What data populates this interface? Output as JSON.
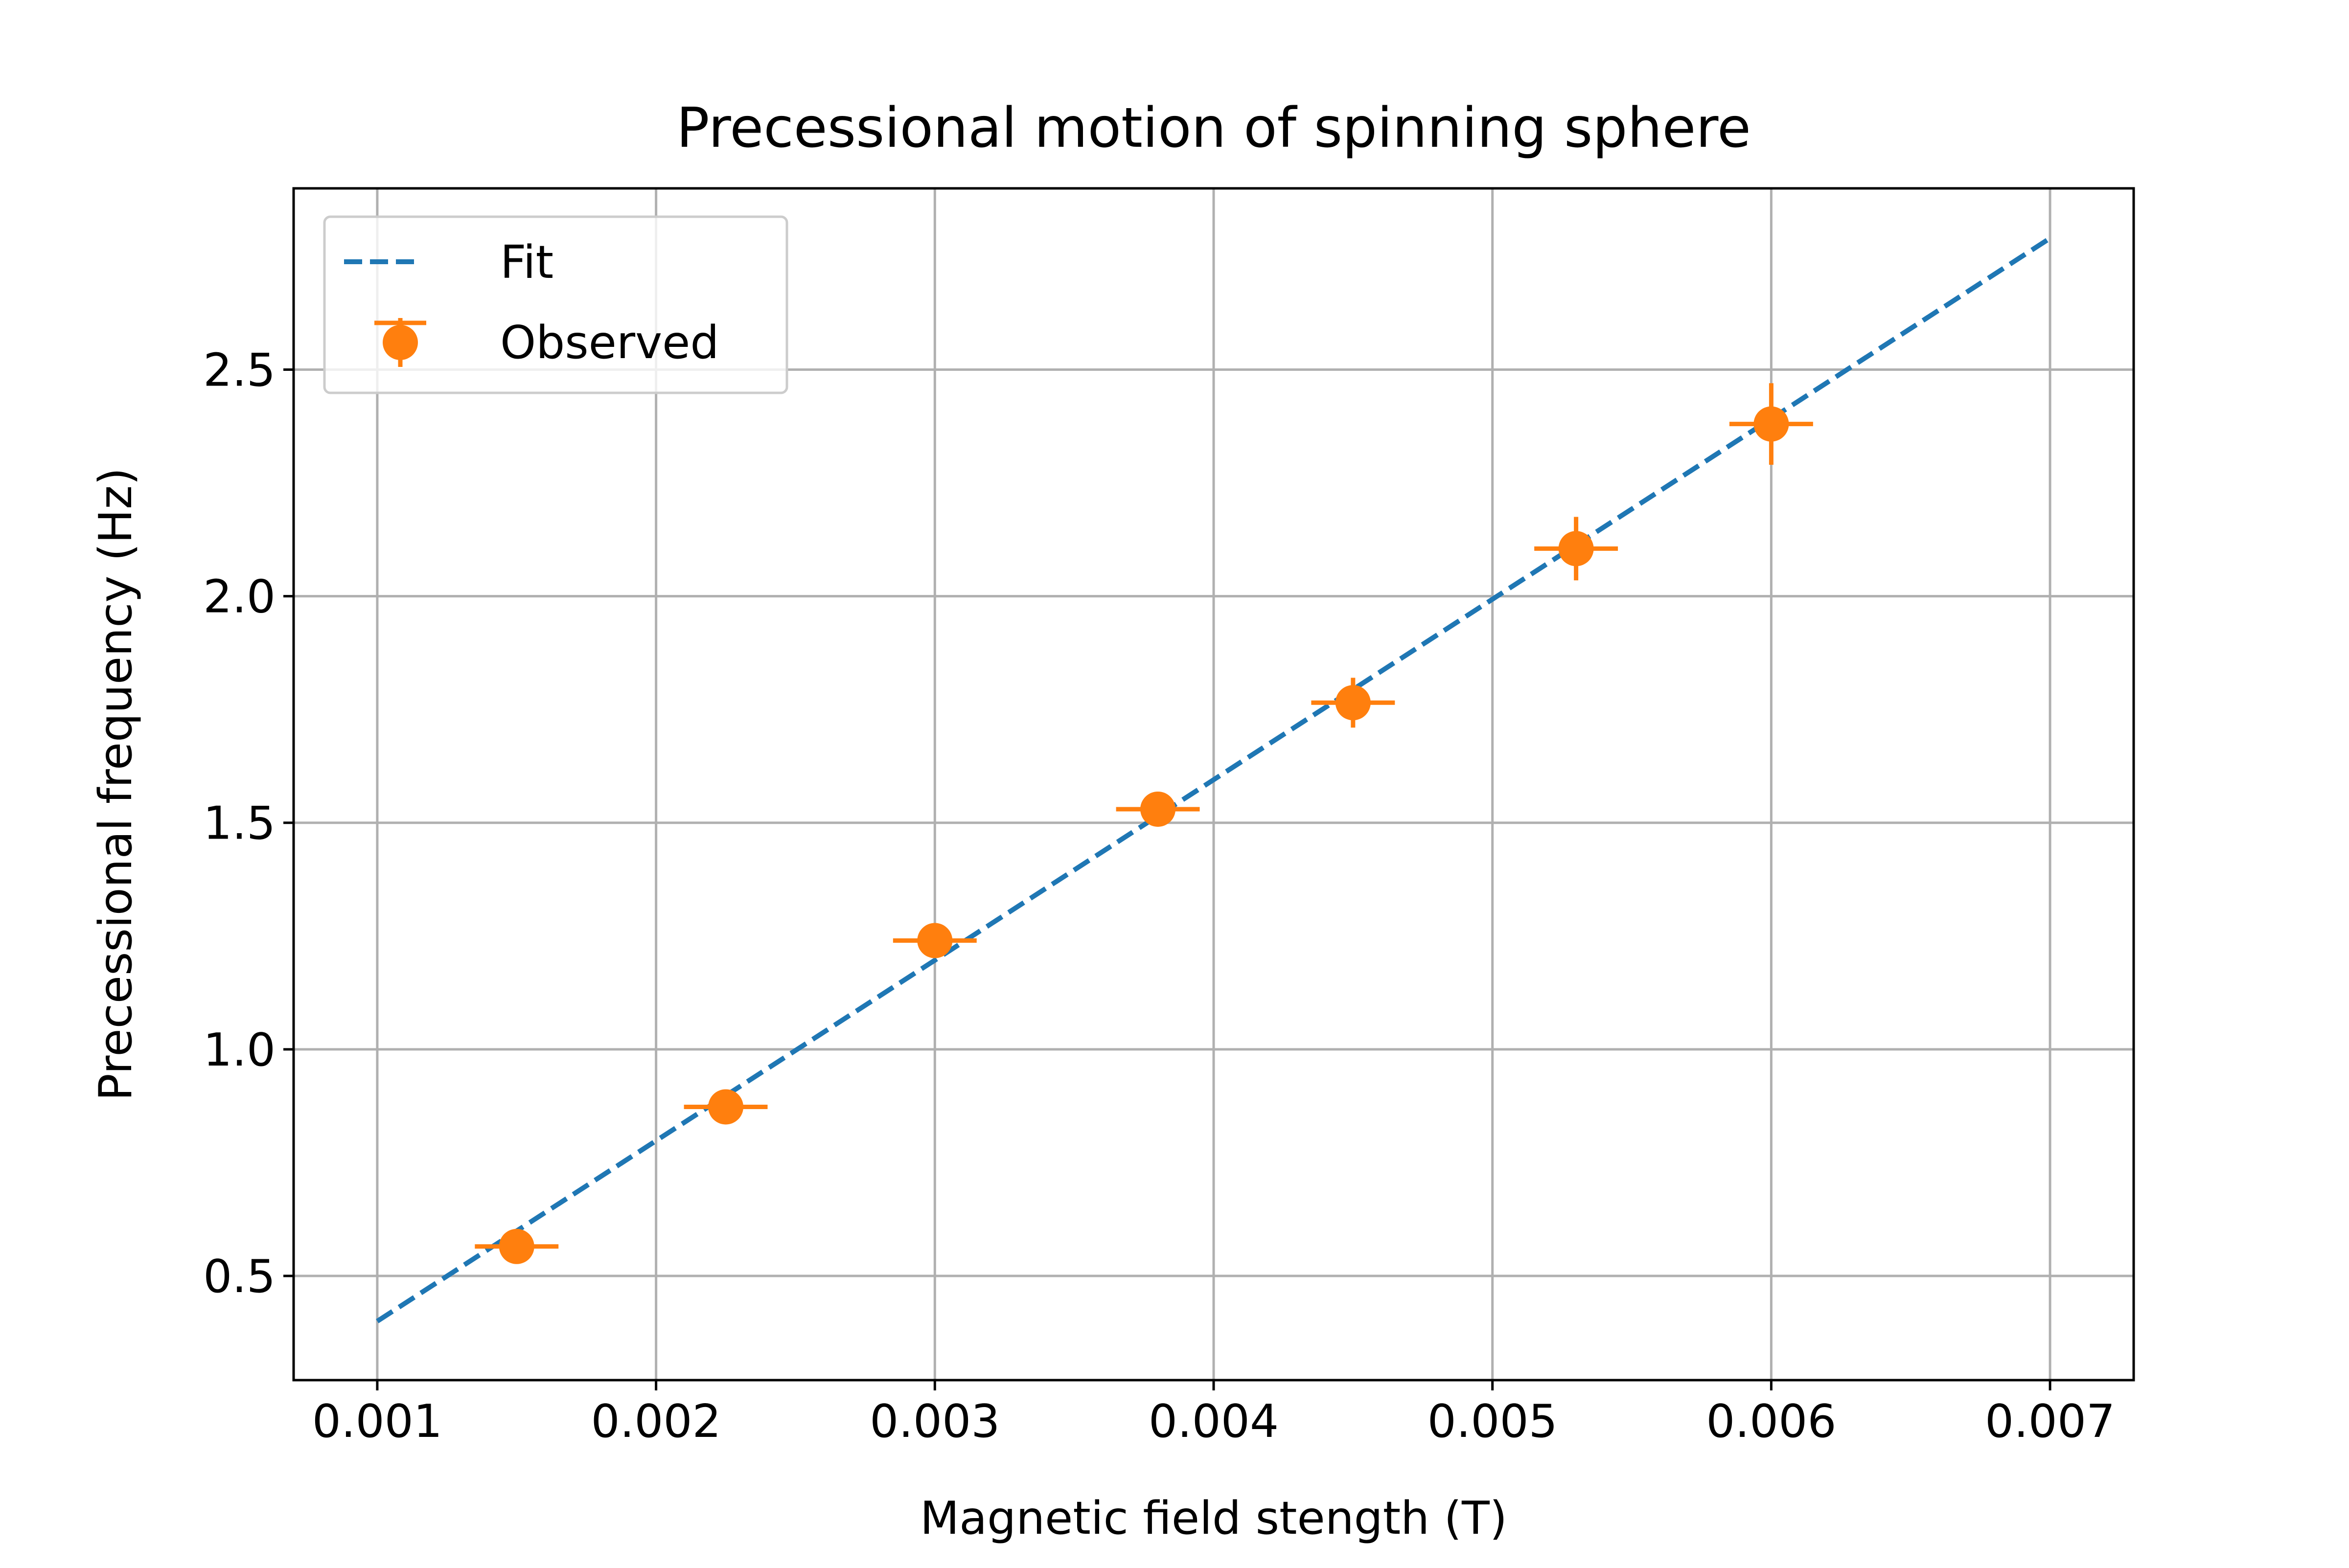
{
  "chart_data": {
    "type": "scatter",
    "title": "Precessional motion of spinning sphere",
    "xlabel": "Magnetic field stength (T)",
    "ylabel": "Precessional frequency (Hz)",
    "xlim": [
      0.0007,
      0.0073
    ],
    "ylim": [
      0.27,
      2.9
    ],
    "x_ticks": [
      0.001,
      0.002,
      0.003,
      0.004,
      0.005,
      0.006,
      0.007
    ],
    "x_tick_labels": [
      "0.001",
      "0.002",
      "0.003",
      "0.004",
      "0.005",
      "0.006",
      "0.007"
    ],
    "y_ticks": [
      0.5,
      1.0,
      1.5,
      2.0,
      2.5
    ],
    "y_tick_labels": [
      "0.5",
      "1.0",
      "1.5",
      "2.0",
      "2.5"
    ],
    "grid": true,
    "legend_position": "top-left",
    "series": [
      {
        "name": "Fit",
        "kind": "line",
        "style": "dashed",
        "color": "#1f77b4",
        "x": [
          0.001,
          0.007
        ],
        "y": [
          0.4,
          2.79
        ]
      },
      {
        "name": "Observed",
        "kind": "errorbar",
        "color": "#ff7f0e",
        "x": [
          0.0015,
          0.00225,
          0.003,
          0.0038,
          0.0045,
          0.0053,
          0.006
        ],
        "y": [
          0.565,
          0.873,
          1.24,
          1.53,
          1.765,
          2.105,
          2.38
        ],
        "xerr": [
          0.00015,
          0.00015,
          0.00015,
          0.00015,
          0.00015,
          0.00015,
          0.00015
        ],
        "yerr": [
          0.015,
          0.02,
          0.03,
          0.025,
          0.055,
          0.07,
          0.09
        ]
      }
    ]
  }
}
